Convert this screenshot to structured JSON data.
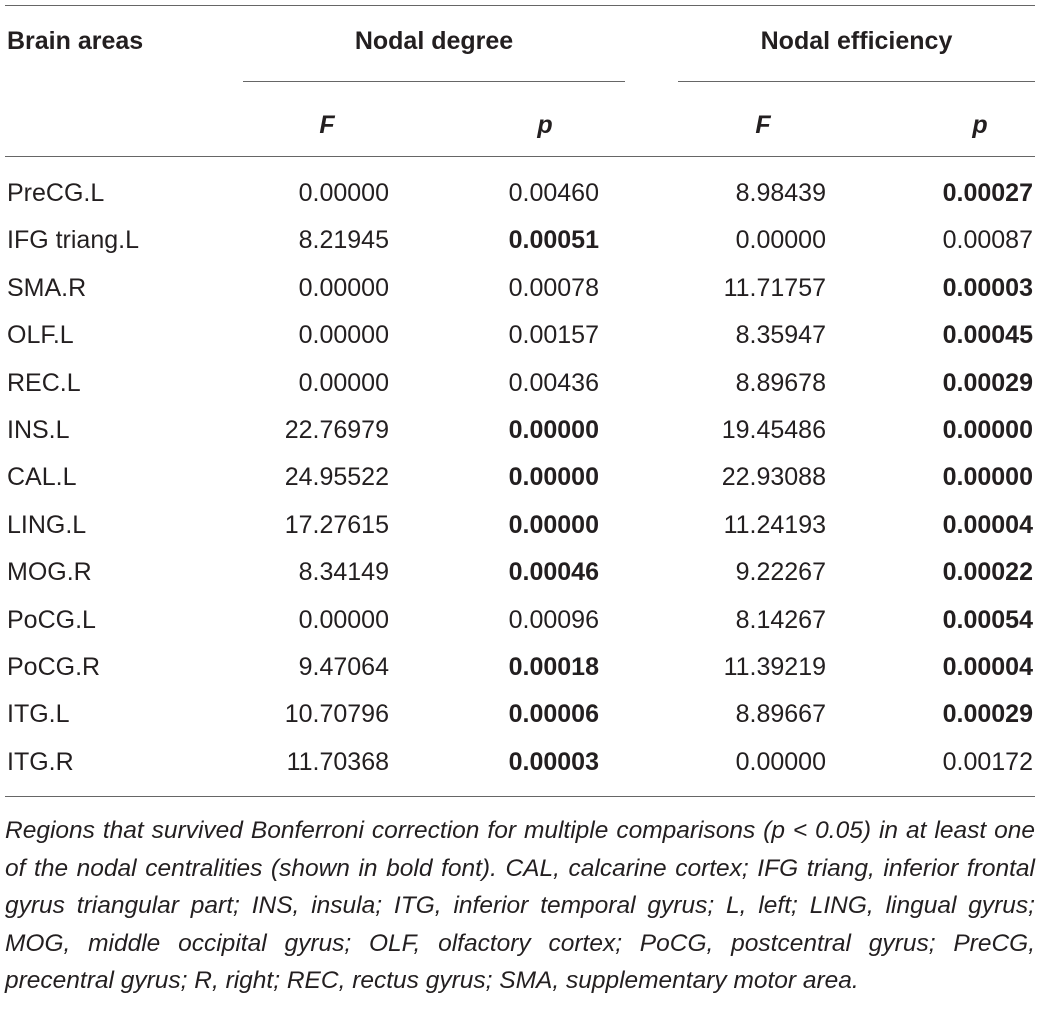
{
  "header": {
    "brain_areas": "Brain areas",
    "nodal_degree": "Nodal degree",
    "nodal_efficiency": "Nodal efficiency",
    "subheaders": [
      "F",
      "p",
      "F",
      "p"
    ]
  },
  "table": {
    "rows": [
      [
        "PreCG.L",
        "0.00000",
        "0.00460",
        "8.98439",
        "0.00027"
      ],
      [
        "IFG triang.L",
        "8.21945",
        "0.00051",
        "0.00000",
        "0.00087"
      ],
      [
        "SMA.R",
        "0.00000",
        "0.00078",
        "11.71757",
        "0.00003"
      ],
      [
        "OLF.L",
        "0.00000",
        "0.00157",
        "8.35947",
        "0.00045"
      ],
      [
        "REC.L",
        "0.00000",
        "0.00436",
        "8.89678",
        "0.00029"
      ],
      [
        "INS.L",
        "22.76979",
        "0.00000",
        "19.45486",
        "0.00000"
      ],
      [
        "CAL.L",
        "24.95522",
        "0.00000",
        "22.93088",
        "0.00000"
      ],
      [
        "LING.L",
        "17.27615",
        "0.00000",
        "11.24193",
        "0.00004"
      ],
      [
        "MOG.R",
        "8.34149",
        "0.00046",
        "9.22267",
        "0.00022"
      ],
      [
        "PoCG.L",
        "0.00000",
        "0.00096",
        "8.14267",
        "0.00054"
      ],
      [
        "PoCG.R",
        "9.47064",
        "0.00018",
        "11.39219",
        "0.00004"
      ],
      [
        "ITG.L",
        "10.70796",
        "0.00006",
        "8.89667",
        "0.00029"
      ],
      [
        "ITG.R",
        "11.70368",
        "0.00003",
        "0.00000",
        "0.00172"
      ]
    ],
    "bold": [
      [
        false,
        false,
        false,
        true
      ],
      [
        false,
        true,
        false,
        false
      ],
      [
        false,
        false,
        false,
        true
      ],
      [
        false,
        false,
        false,
        true
      ],
      [
        false,
        false,
        false,
        true
      ],
      [
        false,
        true,
        false,
        true
      ],
      [
        false,
        true,
        false,
        true
      ],
      [
        false,
        true,
        false,
        true
      ],
      [
        false,
        true,
        false,
        true
      ],
      [
        false,
        false,
        false,
        true
      ],
      [
        false,
        true,
        false,
        true
      ],
      [
        false,
        true,
        false,
        true
      ],
      [
        false,
        true,
        false,
        false
      ]
    ]
  },
  "footnote": "Regions that survived Bonferroni correction for multiple comparisons (p < 0.05) in at least one of the nodal centralities (shown in bold font). CAL, calcarine cortex; IFG triang, inferior frontal gyrus triangular part; INS, insula; ITG, inferior temporal gyrus; L, left; LING, lingual gyrus; MOG, middle occipital gyrus; OLF, olfactory cortex; PoCG, postcentral gyrus; PreCG, precentral gyrus; R, right; REC, rectus gyrus; SMA, supplementary motor area."
}
